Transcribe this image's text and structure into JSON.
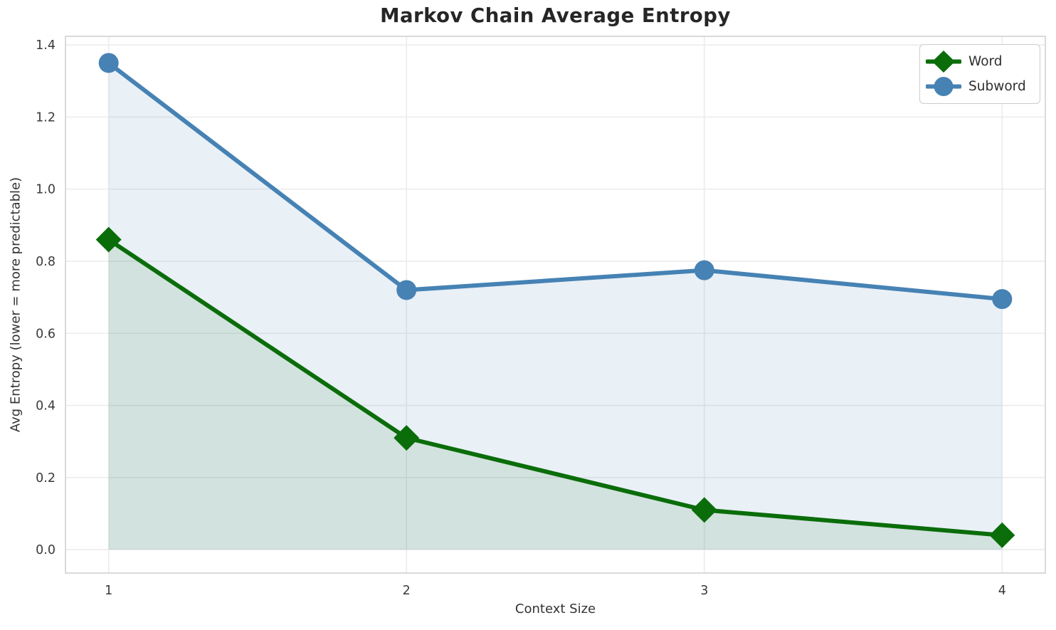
{
  "title": "Markov Chain Average Entropy",
  "chart_data": {
    "type": "line",
    "title": "Markov Chain Average Entropy",
    "xlabel": "Context Size",
    "ylabel": "Avg Entropy (lower = more predictable)",
    "x": [
      1,
      2,
      3,
      4
    ],
    "series": [
      {
        "name": "Word",
        "color": "#0a6d0a",
        "marker": "diamond",
        "fill_color": "rgba(10,109,10,0.10)",
        "values": [
          0.86,
          0.31,
          0.11,
          0.04
        ]
      },
      {
        "name": "Subword",
        "color": "#4682b4",
        "marker": "circle",
        "fill_color": "rgba(70,130,180,0.12)",
        "values": [
          1.35,
          0.72,
          0.775,
          0.695
        ]
      }
    ],
    "area_baseline": 0,
    "xticks": [
      1,
      2,
      3,
      4
    ],
    "yticks": [
      0.0,
      0.2,
      0.4,
      0.6,
      0.8,
      1.0,
      1.2,
      1.4
    ],
    "xlim": [
      0.855,
      4.145
    ],
    "ylim": [
      -0.065,
      1.424
    ],
    "grid": true,
    "grid_color": "#ececec",
    "spine_color": "#d6d6d6",
    "background": "#ffffff",
    "legend_position": "upper right"
  }
}
